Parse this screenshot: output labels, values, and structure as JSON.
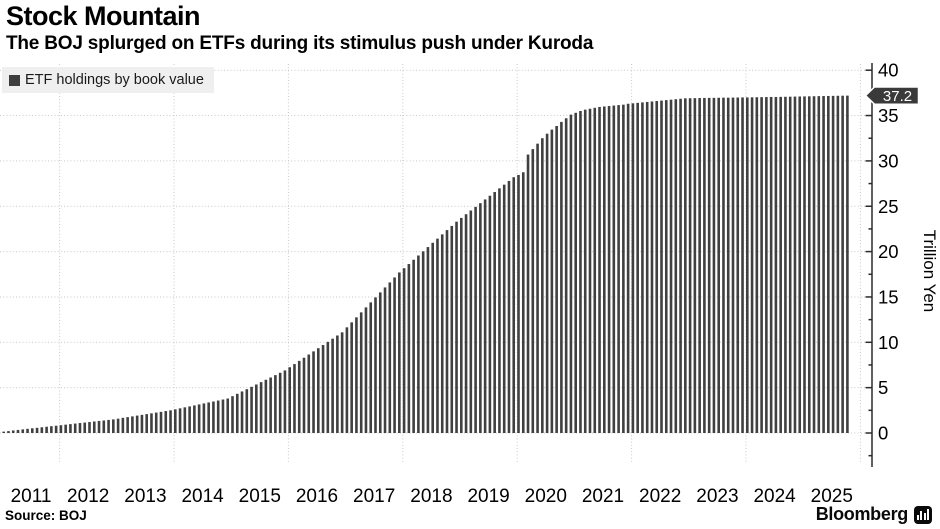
{
  "header": {
    "title": "Stock Mountain",
    "subtitle": "The BOJ splurged on ETFs during its stimulus push under Kuroda"
  },
  "legend": {
    "label": "ETF holdings by book value",
    "swatch_color": "#3d3d3d"
  },
  "footer": {
    "source": "Source: BOJ",
    "brand": "Bloomberg",
    "brand_icon": "bloomberg-chart-icon"
  },
  "chart_data": {
    "type": "bar",
    "title": "Stock Mountain",
    "series_name": "ETF holdings by book value",
    "ylabel": "Trillion Yen",
    "frequency": "monthly",
    "x_start": "2011-01",
    "x_end": "2025-10",
    "grid": "dotted, horizontal every 5, vertical every 2 years",
    "legend_position": "top-left",
    "axis_side": "right",
    "ylim": [
      -4,
      42
    ],
    "y_ticks": [
      0,
      5,
      10,
      15,
      20,
      25,
      30,
      35,
      40
    ],
    "y_minor_ticks": [
      -2.5,
      2.5,
      7.5,
      12.5,
      17.5,
      22.5,
      27.5,
      32.5,
      37.5
    ],
    "year_labels": [
      "2011",
      "2012",
      "2013",
      "2014",
      "2015",
      "2016",
      "2017",
      "2018",
      "2019",
      "2020",
      "2021",
      "2022",
      "2023",
      "2024",
      "2025"
    ],
    "gridline_years": [
      2012,
      2014,
      2016,
      2018,
      2020,
      2022,
      2024,
      2026
    ],
    "last_value_label": "37.2",
    "values": [
      0.15,
      0.21,
      0.28,
      0.34,
      0.4,
      0.46,
      0.52,
      0.57,
      0.63,
      0.69,
      0.75,
      0.8,
      0.86,
      0.92,
      0.98,
      1.04,
      1.1,
      1.15,
      1.21,
      1.27,
      1.33,
      1.38,
      1.44,
      1.5,
      1.58,
      1.67,
      1.75,
      1.83,
      1.92,
      2.0,
      2.08,
      2.17,
      2.25,
      2.33,
      2.42,
      2.5,
      2.61,
      2.72,
      2.83,
      2.93,
      3.04,
      3.15,
      3.26,
      3.37,
      3.47,
      3.58,
      3.69,
      3.8,
      4.06,
      4.32,
      4.58,
      4.83,
      5.09,
      5.35,
      5.61,
      5.87,
      6.12,
      6.38,
      6.64,
      6.9,
      7.25,
      7.6,
      7.95,
      8.3,
      8.65,
      9.0,
      9.35,
      9.7,
      10.05,
      10.4,
      10.75,
      11.1,
      11.65,
      12.2,
      12.75,
      13.3,
      13.85,
      14.4,
      14.95,
      15.5,
      16.05,
      16.6,
      17.15,
      17.7,
      18.17,
      18.63,
      19.1,
      19.57,
      20.03,
      20.5,
      20.97,
      21.43,
      21.9,
      22.37,
      22.83,
      23.3,
      23.71,
      24.12,
      24.53,
      24.93,
      25.34,
      25.75,
      26.16,
      26.57,
      26.97,
      27.38,
      27.79,
      28.2,
      28.45,
      28.75,
      30.7,
      31.3,
      31.9,
      32.5,
      33.0,
      33.45,
      33.85,
      34.3,
      34.7,
      35.1,
      35.3,
      35.5,
      35.65,
      35.75,
      35.85,
      35.95,
      36.0,
      36.05,
      36.1,
      36.15,
      36.2,
      36.3,
      36.35,
      36.4,
      36.45,
      36.5,
      36.55,
      36.6,
      36.65,
      36.7,
      36.75,
      36.8,
      36.85,
      36.9,
      36.91,
      36.92,
      36.93,
      36.94,
      36.95,
      36.95,
      36.96,
      36.97,
      36.97,
      36.98,
      36.99,
      37.0,
      37.0,
      37.01,
      37.02,
      37.03,
      37.04,
      37.05,
      37.05,
      37.06,
      37.07,
      37.08,
      37.09,
      37.1,
      37.11,
      37.12,
      37.13,
      37.14,
      37.15,
      37.16,
      37.17,
      37.18,
      37.19,
      37.2
    ],
    "colors": {
      "bar": "#404040",
      "grid": "#c9c9c9",
      "axis": "#2b2b2b",
      "text": "#000000",
      "badge_bg": "#3a3a3a",
      "badge_text": "#ffffff",
      "legend_bg": "#efefef"
    }
  }
}
